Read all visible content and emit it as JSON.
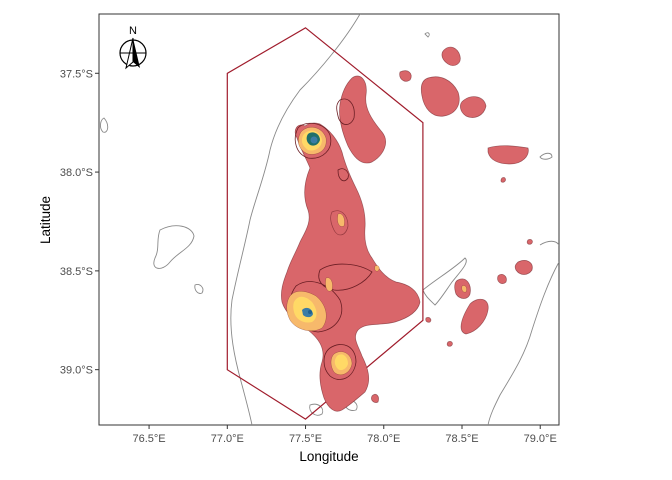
{
  "map": {
    "x_axis": {
      "title": "Longitude",
      "ticks": [
        {
          "value": 76.5,
          "label": "76.5°E"
        },
        {
          "value": 77.0,
          "label": "77.0°E"
        },
        {
          "value": 77.5,
          "label": "77.5°E"
        },
        {
          "value": 78.0,
          "label": "78.0°E"
        },
        {
          "value": 78.5,
          "label": "78.5°E"
        },
        {
          "value": 79.0,
          "label": "79.0°E"
        }
      ],
      "range": [
        76.18,
        79.12
      ]
    },
    "y_axis": {
      "title": "Latitude",
      "ticks": [
        {
          "value": -37.5,
          "label": "37.5°S"
        },
        {
          "value": -38.0,
          "label": "38.0°S"
        },
        {
          "value": -38.5,
          "label": "38.5°S"
        },
        {
          "value": -39.0,
          "label": "39.0°S"
        }
      ],
      "range": [
        -39.28,
        -37.2
      ]
    },
    "north_arrow": {
      "label": "N"
    },
    "boundary_polygon": {
      "color": "#a01c2c",
      "vertices": [
        [
          77.5,
          -37.27
        ],
        [
          78.25,
          -37.75
        ],
        [
          78.25,
          -38.75
        ],
        [
          77.5,
          -39.25
        ],
        [
          77.0,
          -39.0
        ],
        [
          77.0,
          -37.5
        ]
      ]
    },
    "colors": {
      "density_low": "#d9666a",
      "density_mid": "#f7b96b",
      "density_high": "#ffd966",
      "core": "#3a7ca5",
      "core_dark": "#1f6f6a",
      "coastline": "#8a8a8a",
      "contour": "#6b1e24"
    }
  }
}
